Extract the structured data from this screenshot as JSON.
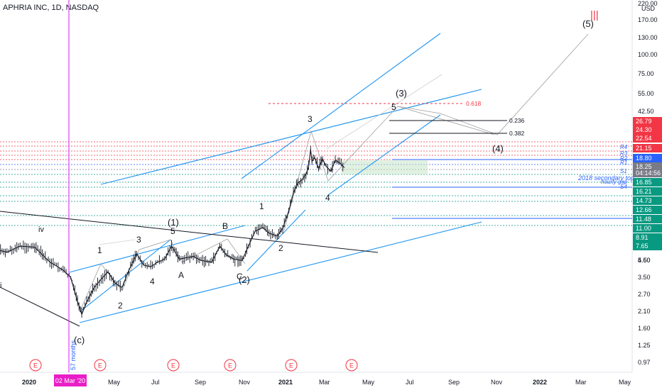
{
  "header": {
    "title": "APHRIA INC, 1D, NASDAQ",
    "currency": "USD"
  },
  "chart_data": {
    "type": "candlestick",
    "symbol": "APHRIA INC",
    "interval": "1D",
    "exchange": "NASDAQ",
    "y_scale": "log",
    "y_axis_ticks": [
      "220.00",
      "170.00",
      "130.00",
      "100.00",
      "75.00",
      "55.00",
      "42.50",
      "5.60",
      "4.50",
      "3.50",
      "2.70",
      "2.10",
      "1.60",
      "1.25",
      "0.97"
    ],
    "x_axis_ticks": [
      "2020",
      "May",
      "Jul",
      "Sep",
      "Nov",
      "2021",
      "Mar",
      "May",
      "Jul",
      "Sep",
      "Nov",
      "2022",
      "Mar",
      "May"
    ],
    "price_badges": [
      {
        "value": "26.79",
        "color": "#f23645"
      },
      {
        "value": "24.30",
        "color": "#f23645"
      },
      {
        "value": "22.54",
        "color": "#f23645"
      },
      {
        "value": "21.15",
        "color": "#f23645"
      },
      {
        "value": "18.80",
        "color": "#2962ff"
      },
      {
        "value": "18.25",
        "color": "#787b86"
      },
      {
        "value": "04:14:56",
        "color": "#787b86"
      },
      {
        "value": "16.85",
        "color": "#089981"
      },
      {
        "value": "16.21",
        "color": "#089981"
      },
      {
        "value": "14.73",
        "color": "#089981"
      },
      {
        "value": "12.66",
        "color": "#089981"
      },
      {
        "value": "11.48",
        "color": "#089981"
      },
      {
        "value": "11.00",
        "color": "#089981"
      },
      {
        "value": "8.91",
        "color": "#089981"
      },
      {
        "value": "7.65",
        "color": "#089981"
      }
    ],
    "vertical_marker": {
      "date_label": "02 Mar '20",
      "duration_label": "57 months"
    },
    "wave_labels": [
      "iv",
      "1",
      "3",
      "(1)",
      "5",
      "A",
      "4",
      "2",
      "B",
      "C",
      "(2)",
      "(c)",
      "i",
      "1",
      "2",
      "3",
      "4",
      "(3)",
      "5",
      "(4)",
      "(5)",
      "|||"
    ],
    "fib_levels": [
      "0.618",
      "0.236",
      "0.382"
    ],
    "pivot_labels": [
      "R4",
      "R3",
      "R2",
      "R1",
      "S1",
      "S4"
    ],
    "annotations": [
      "2018 secondary top",
      "hourly gap"
    ],
    "earnings_markers": [
      "E",
      "E",
      "E",
      "E",
      "E",
      "E"
    ],
    "price_path": [
      [
        "2019-10-01",
        4.5
      ],
      [
        "2019-10-20",
        4.9
      ],
      [
        "2019-11-10",
        5.4
      ],
      [
        "2019-12-01",
        5.1
      ],
      [
        "2019-12-20",
        5.6
      ],
      [
        "2020-01-10",
        5.5
      ],
      [
        "2020-02-01",
        4.4
      ],
      [
        "2020-02-20",
        3.9
      ],
      [
        "2020-03-02",
        3.5
      ],
      [
        "2020-03-10",
        2.6
      ],
      [
        "2020-03-18",
        2.0
      ],
      [
        "2020-03-25",
        2.4
      ],
      [
        "2020-04-05",
        3.0
      ],
      [
        "2020-04-15",
        3.4
      ],
      [
        "2020-04-25",
        3.8
      ],
      [
        "2020-05-05",
        3.2
      ],
      [
        "2020-05-15",
        3.0
      ],
      [
        "2020-05-25",
        3.9
      ],
      [
        "2020-06-05",
        5.0
      ],
      [
        "2020-06-15",
        4.2
      ],
      [
        "2020-06-25",
        4.1
      ],
      [
        "2020-07-05",
        4.4
      ],
      [
        "2020-07-15",
        4.6
      ],
      [
        "2020-07-25",
        5.6
      ],
      [
        "2020-08-05",
        4.6
      ],
      [
        "2020-08-15",
        4.7
      ],
      [
        "2020-08-25",
        4.8
      ],
      [
        "2020-09-05",
        4.5
      ],
      [
        "2020-09-20",
        4.4
      ],
      [
        "2020-10-01",
        5.6
      ],
      [
        "2020-10-10",
        4.9
      ],
      [
        "2020-10-20",
        4.6
      ],
      [
        "2020-11-01",
        4.5
      ],
      [
        "2020-11-10",
        5.6
      ],
      [
        "2020-11-20",
        7.0
      ],
      [
        "2020-12-01",
        7.4
      ],
      [
        "2020-12-10",
        6.8
      ],
      [
        "2020-12-22",
        6.5
      ],
      [
        "2020-12-30",
        7.3
      ],
      [
        "2021-01-08",
        9.5
      ],
      [
        "2021-01-15",
        12.5
      ],
      [
        "2021-01-22",
        14.5
      ],
      [
        "2021-01-28",
        15.2
      ],
      [
        "2021-02-03",
        16.5
      ],
      [
        "2021-02-07",
        18.5
      ],
      [
        "2021-02-10",
        24.0
      ],
      [
        "2021-02-12",
        20.0
      ],
      [
        "2021-02-16",
        21.2
      ],
      [
        "2021-02-22",
        18.0
      ],
      [
        "2021-02-28",
        20.8
      ],
      [
        "2021-03-05",
        18.6
      ],
      [
        "2021-03-12",
        17.2
      ],
      [
        "2021-03-18",
        20.3
      ],
      [
        "2021-03-24",
        19.6
      ],
      [
        "2021-03-31",
        18.2
      ]
    ]
  }
}
